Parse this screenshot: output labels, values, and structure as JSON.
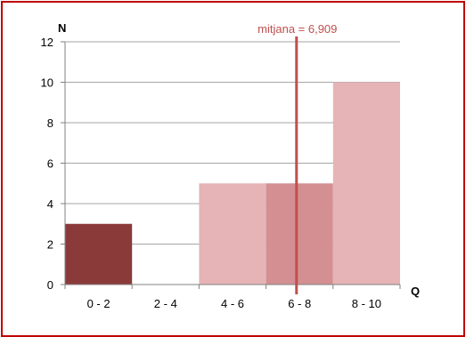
{
  "chart_data": {
    "type": "bar",
    "categories": [
      "0 - 2",
      "2 - 4",
      "4 - 6",
      "6 - 8",
      "8 - 10"
    ],
    "values": [
      3,
      0,
      5,
      5,
      10
    ],
    "bar_colors": [
      "#8b3a3a",
      "#e6b4b6",
      "#e6b4b6",
      "#d38f92",
      "#e6b4b6"
    ],
    "ylabel": "N",
    "xlabel": "Q",
    "ylim": [
      0,
      12
    ],
    "yticks": [
      0,
      2,
      4,
      6,
      8,
      10,
      12
    ],
    "grid": true,
    "legend": "none",
    "mean": {
      "value": 6.909,
      "label": "mitjana = 6,909",
      "color": "#c0504d"
    }
  }
}
